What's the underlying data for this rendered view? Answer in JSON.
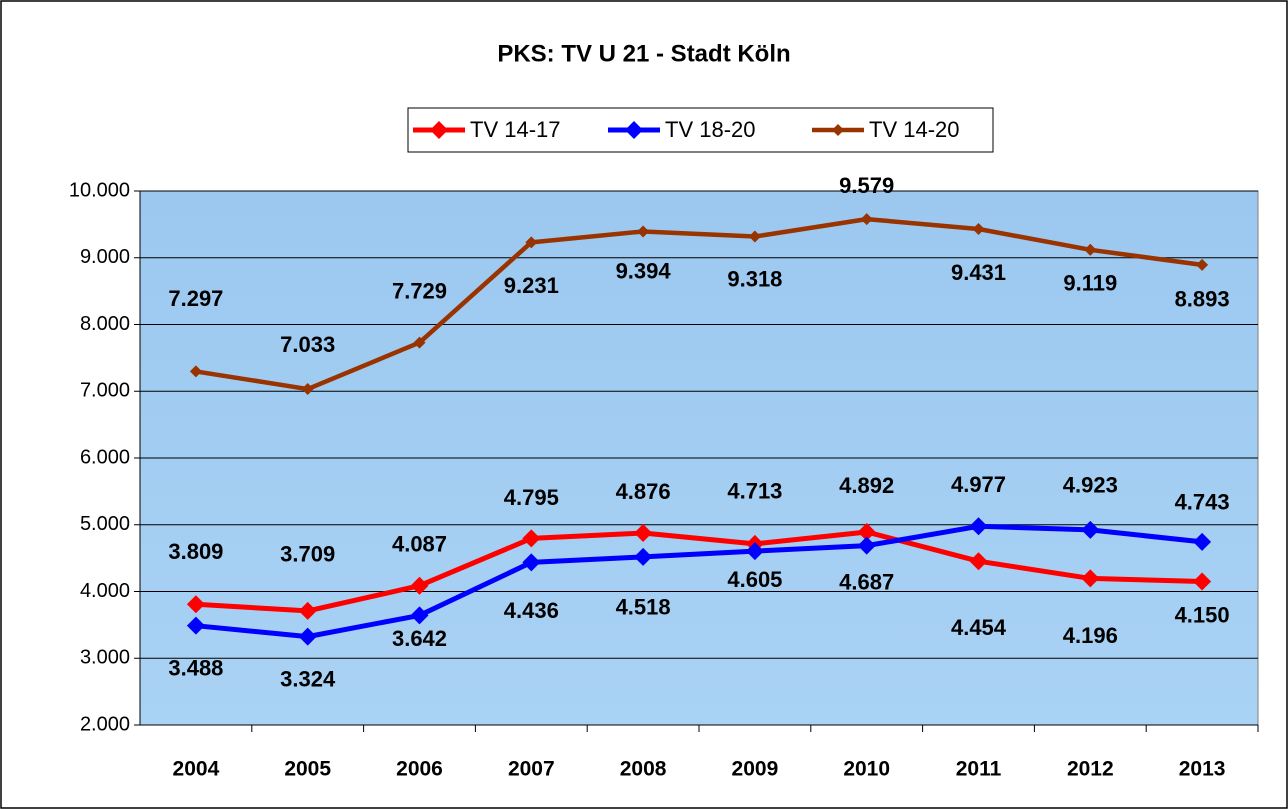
{
  "chart_data": {
    "type": "line",
    "title": "PKS: TV U 21 - Stadt Köln",
    "categories": [
      "2004",
      "2005",
      "2006",
      "2007",
      "2008",
      "2009",
      "2010",
      "2011",
      "2012",
      "2013"
    ],
    "series": [
      {
        "name": "TV 14-17",
        "color": "#ff0000",
        "values": [
          3809,
          3709,
          4087,
          4795,
          4876,
          4713,
          4892,
          4454,
          4196,
          4150
        ],
        "value_labels": [
          "3.809",
          "3.709",
          "4.087",
          "4.795",
          "4.876",
          "4.713",
          "4.892",
          "4.454",
          "4.196",
          "4.150"
        ]
      },
      {
        "name": "TV 18-20",
        "color": "#0000ff",
        "values": [
          3488,
          3324,
          3642,
          4436,
          4518,
          4605,
          4687,
          4977,
          4923,
          4743
        ],
        "value_labels": [
          "3.488",
          "3.324",
          "3.642",
          "4.436",
          "4.518",
          "4.605",
          "4.687",
          "4.977",
          "4.923",
          "4.743"
        ]
      },
      {
        "name": "TV 14-20",
        "color": "#993300",
        "values": [
          7297,
          7033,
          7729,
          9231,
          9394,
          9318,
          9579,
          9431,
          9119,
          8893
        ],
        "value_labels": [
          "7.297",
          "7.033",
          "7.729",
          "9.231",
          "9.394",
          "9.318",
          "9.579",
          "9.431",
          "9.119",
          "8.893"
        ]
      }
    ],
    "ylim": [
      2000,
      10000
    ],
    "yticks": [
      {
        "value": 2000,
        "label": "2.000"
      },
      {
        "value": 3000,
        "label": "3.000"
      },
      {
        "value": 4000,
        "label": "4.000"
      },
      {
        "value": 5000,
        "label": "5.000"
      },
      {
        "value": 6000,
        "label": "6.000"
      },
      {
        "value": 7000,
        "label": "7.000"
      },
      {
        "value": 8000,
        "label": "8.000"
      },
      {
        "value": 9000,
        "label": "9.000"
      },
      {
        "value": 10000,
        "label": "10.000"
      }
    ],
    "grid": true,
    "legend": "top"
  }
}
